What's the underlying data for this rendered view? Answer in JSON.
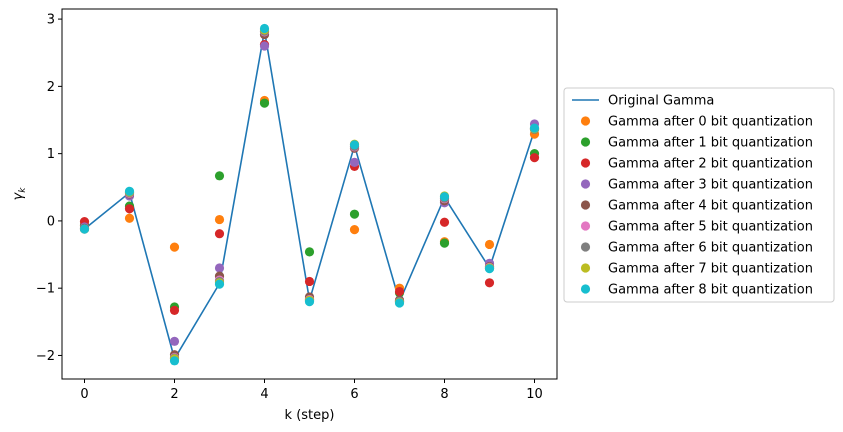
{
  "chart_data": {
    "type": "scatter",
    "title": "",
    "xlabel": "k (step)",
    "ylabel_base": "γ",
    "ylabel_sub": "k",
    "xlim": [
      -0.5,
      10.5
    ],
    "ylim": [
      -2.35,
      3.15
    ],
    "xticks": [
      0,
      2,
      4,
      6,
      8,
      10
    ],
    "yticks": [
      -2,
      -1,
      0,
      1,
      2,
      3
    ],
    "ytick_labels": [
      "−2",
      "−1",
      "0",
      "1",
      "2",
      "3"
    ],
    "grid": false,
    "legend_placement": "center-right outside",
    "x": [
      0,
      1,
      2,
      3,
      4,
      5,
      6,
      7,
      8,
      9,
      10
    ],
    "line": {
      "name": "Original Gamma",
      "color": "#1f77b4",
      "values": [
        -0.12,
        0.42,
        -2.05,
        -0.93,
        2.83,
        -1.18,
        1.12,
        -1.2,
        0.35,
        -0.7,
        1.35
      ]
    },
    "series": [
      {
        "name": "Gamma after 0 bit quantization",
        "color": "#ff7f0e",
        "values": [
          -0.07,
          0.04,
          -0.39,
          0.02,
          1.79,
          -1.17,
          -0.13,
          -1.0,
          -0.31,
          -0.35,
          1.29
        ]
      },
      {
        "name": "Gamma after 1 bit quantization",
        "color": "#2ca02c",
        "values": [
          -0.06,
          0.22,
          -1.28,
          0.67,
          1.75,
          -0.46,
          0.1,
          -1.07,
          -0.33,
          -0.7,
          1.0
        ]
      },
      {
        "name": "Gamma after 2 bit quantization",
        "color": "#d62728",
        "values": [
          -0.01,
          0.18,
          -1.33,
          -0.19,
          2.62,
          -0.9,
          0.81,
          -1.05,
          -0.02,
          -0.92,
          0.94
        ]
      },
      {
        "name": "Gamma after 3 bit quantization",
        "color": "#9467bd",
        "values": [
          -0.09,
          0.37,
          -1.79,
          -0.7,
          2.6,
          -1.15,
          0.87,
          -1.18,
          0.27,
          -0.63,
          1.44
        ]
      },
      {
        "name": "Gamma after 4 bit quantization",
        "color": "#8c564b",
        "values": [
          -0.11,
          0.4,
          -1.99,
          -0.82,
          2.77,
          -1.13,
          1.08,
          -1.18,
          0.3,
          -0.68,
          1.36
        ]
      },
      {
        "name": "Gamma after 5 bit quantization",
        "color": "#e377c2",
        "values": [
          -0.12,
          0.41,
          -2.03,
          -0.88,
          2.81,
          -1.17,
          1.1,
          -1.2,
          0.33,
          -0.69,
          1.37
        ]
      },
      {
        "name": "Gamma after 6 bit quantization",
        "color": "#7f7f7f",
        "values": [
          -0.12,
          0.42,
          -2.04,
          -0.9,
          2.82,
          -1.18,
          1.11,
          -1.2,
          0.34,
          -0.7,
          1.36
        ]
      },
      {
        "name": "Gamma after 7 bit quantization",
        "color": "#bcbd22",
        "values": [
          -0.12,
          0.43,
          -2.05,
          -0.92,
          2.84,
          -1.18,
          1.14,
          -1.21,
          0.37,
          -0.7,
          1.37
        ]
      },
      {
        "name": "Gamma after 8 bit quantization",
        "color": "#17becf",
        "values": [
          -0.12,
          0.44,
          -2.08,
          -0.94,
          2.86,
          -1.2,
          1.13,
          -1.22,
          0.36,
          -0.71,
          1.38
        ]
      }
    ]
  }
}
